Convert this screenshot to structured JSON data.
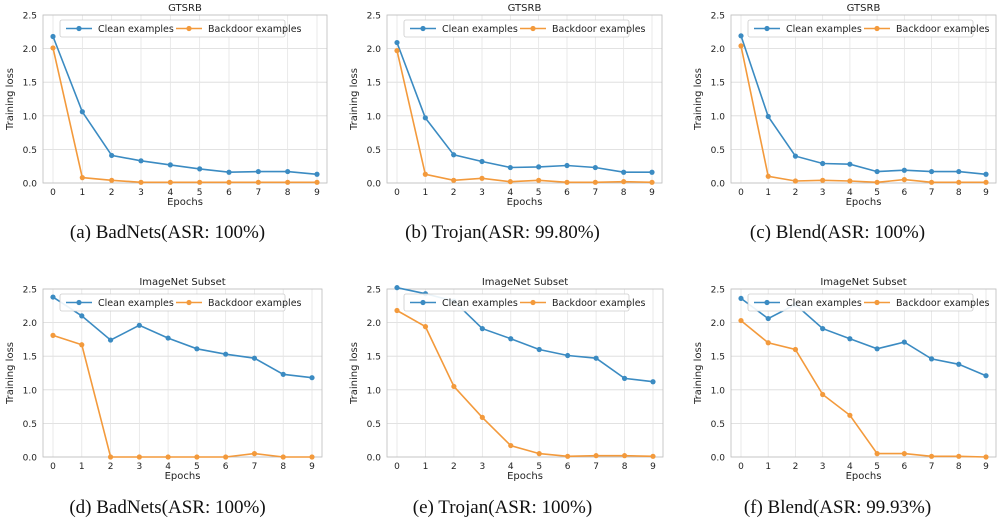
{
  "chart_data": [
    {
      "type": "line",
      "title": "GTSRB",
      "xlabel": "Epochs",
      "ylabel": "Training loss",
      "x": [
        0,
        1,
        2,
        3,
        4,
        5,
        6,
        7,
        8,
        9
      ],
      "ylim": [
        0,
        2.5
      ],
      "yticks": [
        "0.0",
        "0.5",
        "1.0",
        "1.5",
        "2.0",
        "2.5"
      ],
      "grid": true,
      "legend": "top",
      "series": [
        {
          "name": "Clean examples",
          "color": "#3b8bc2",
          "values": [
            2.18,
            1.06,
            0.41,
            0.33,
            0.27,
            0.21,
            0.16,
            0.17,
            0.17,
            0.13
          ]
        },
        {
          "name": "Backdoor examples",
          "color": "#f39a3c",
          "values": [
            2.01,
            0.08,
            0.04,
            0.01,
            0.01,
            0.01,
            0.01,
            0.01,
            0.01,
            0.01
          ]
        }
      ],
      "caption": "(a)  BadNets(ASR: 100%)"
    },
    {
      "type": "line",
      "title": "GTSRB",
      "xlabel": "Epochs",
      "ylabel": "Training loss",
      "x": [
        0,
        1,
        2,
        3,
        4,
        5,
        6,
        7,
        8,
        9
      ],
      "ylim": [
        0,
        2.5
      ],
      "yticks": [
        "0.0",
        "0.5",
        "1.0",
        "1.5",
        "2.0",
        "2.5"
      ],
      "grid": true,
      "legend": "top",
      "series": [
        {
          "name": "Clean examples",
          "color": "#3b8bc2",
          "values": [
            2.09,
            0.97,
            0.42,
            0.32,
            0.23,
            0.24,
            0.26,
            0.23,
            0.16,
            0.16
          ]
        },
        {
          "name": "Backdoor examples",
          "color": "#f39a3c",
          "values": [
            1.97,
            0.13,
            0.04,
            0.07,
            0.02,
            0.04,
            0.01,
            0.01,
            0.02,
            0.01
          ]
        }
      ],
      "caption": "(b)  Trojan(ASR: 99.80%)"
    },
    {
      "type": "line",
      "title": "GTSRB",
      "xlabel": "Epochs",
      "ylabel": "Training loss",
      "x": [
        0,
        1,
        2,
        3,
        4,
        5,
        6,
        7,
        8,
        9
      ],
      "ylim": [
        0,
        2.5
      ],
      "yticks": [
        "0.0",
        "0.5",
        "1.0",
        "1.5",
        "2.0",
        "2.5"
      ],
      "grid": true,
      "legend": "top",
      "series": [
        {
          "name": "Clean examples",
          "color": "#3b8bc2",
          "values": [
            2.19,
            0.99,
            0.4,
            0.29,
            0.28,
            0.17,
            0.19,
            0.17,
            0.17,
            0.13
          ]
        },
        {
          "name": "Backdoor examples",
          "color": "#f39a3c",
          "values": [
            2.04,
            0.1,
            0.03,
            0.04,
            0.03,
            0.01,
            0.05,
            0.01,
            0.01,
            0.01
          ]
        }
      ],
      "caption": "(c)  Blend(ASR: 100%)"
    },
    {
      "type": "line",
      "title": "ImageNet Subset",
      "xlabel": "Epochs",
      "ylabel": "Training loss",
      "x": [
        0,
        1,
        2,
        3,
        4,
        5,
        6,
        7,
        8,
        9
      ],
      "ylim": [
        0,
        2.5
      ],
      "yticks": [
        "0.0",
        "0.5",
        "1.0",
        "1.5",
        "2.0",
        "2.5"
      ],
      "grid": true,
      "legend": "top",
      "series": [
        {
          "name": "Clean examples",
          "color": "#3b8bc2",
          "values": [
            2.38,
            2.1,
            1.74,
            1.96,
            1.77,
            1.61,
            1.53,
            1.47,
            1.23,
            1.18
          ]
        },
        {
          "name": "Backdoor examples",
          "color": "#f39a3c",
          "values": [
            1.81,
            1.67,
            0.0,
            0.0,
            0.0,
            0.0,
            0.0,
            0.05,
            0.0,
            0.0
          ]
        }
      ],
      "caption": "(d)  BadNets(ASR: 100%)"
    },
    {
      "type": "line",
      "title": "ImageNet Subset",
      "xlabel": "Epochs",
      "ylabel": "Training loss",
      "x": [
        0,
        1,
        2,
        3,
        4,
        5,
        6,
        7,
        8,
        9
      ],
      "ylim": [
        0,
        2.5
      ],
      "yticks": [
        "0.0",
        "0.5",
        "1.0",
        "1.5",
        "2.0",
        "2.5"
      ],
      "grid": true,
      "legend": "top",
      "series": [
        {
          "name": "Clean examples",
          "color": "#3b8bc2",
          "values": [
            2.52,
            2.43,
            2.32,
            1.91,
            1.76,
            1.6,
            1.51,
            1.47,
            1.17,
            1.12
          ]
        },
        {
          "name": "Backdoor examples",
          "color": "#f39a3c",
          "values": [
            2.18,
            1.94,
            1.05,
            0.59,
            0.17,
            0.05,
            0.01,
            0.02,
            0.02,
            0.01
          ]
        }
      ],
      "caption": "(e)  Trojan(ASR: 100%)"
    },
    {
      "type": "line",
      "title": "ImageNet Subset",
      "xlabel": "Epochs",
      "ylabel": "Training loss",
      "x": [
        0,
        1,
        2,
        3,
        4,
        5,
        6,
        7,
        8,
        9
      ],
      "ylim": [
        0,
        2.5
      ],
      "yticks": [
        "0.0",
        "0.5",
        "1.0",
        "1.5",
        "2.0",
        "2.5"
      ],
      "grid": true,
      "legend": "top",
      "series": [
        {
          "name": "Clean examples",
          "color": "#3b8bc2",
          "values": [
            2.36,
            2.06,
            2.27,
            1.91,
            1.76,
            1.61,
            1.71,
            1.46,
            1.38,
            1.21
          ]
        },
        {
          "name": "Backdoor examples",
          "color": "#f39a3c",
          "values": [
            2.03,
            1.7,
            1.6,
            0.93,
            0.62,
            0.05,
            0.05,
            0.01,
            0.01,
            0.0
          ]
        }
      ],
      "caption": "(f)  Blend(ASR: 99.93%)"
    }
  ]
}
